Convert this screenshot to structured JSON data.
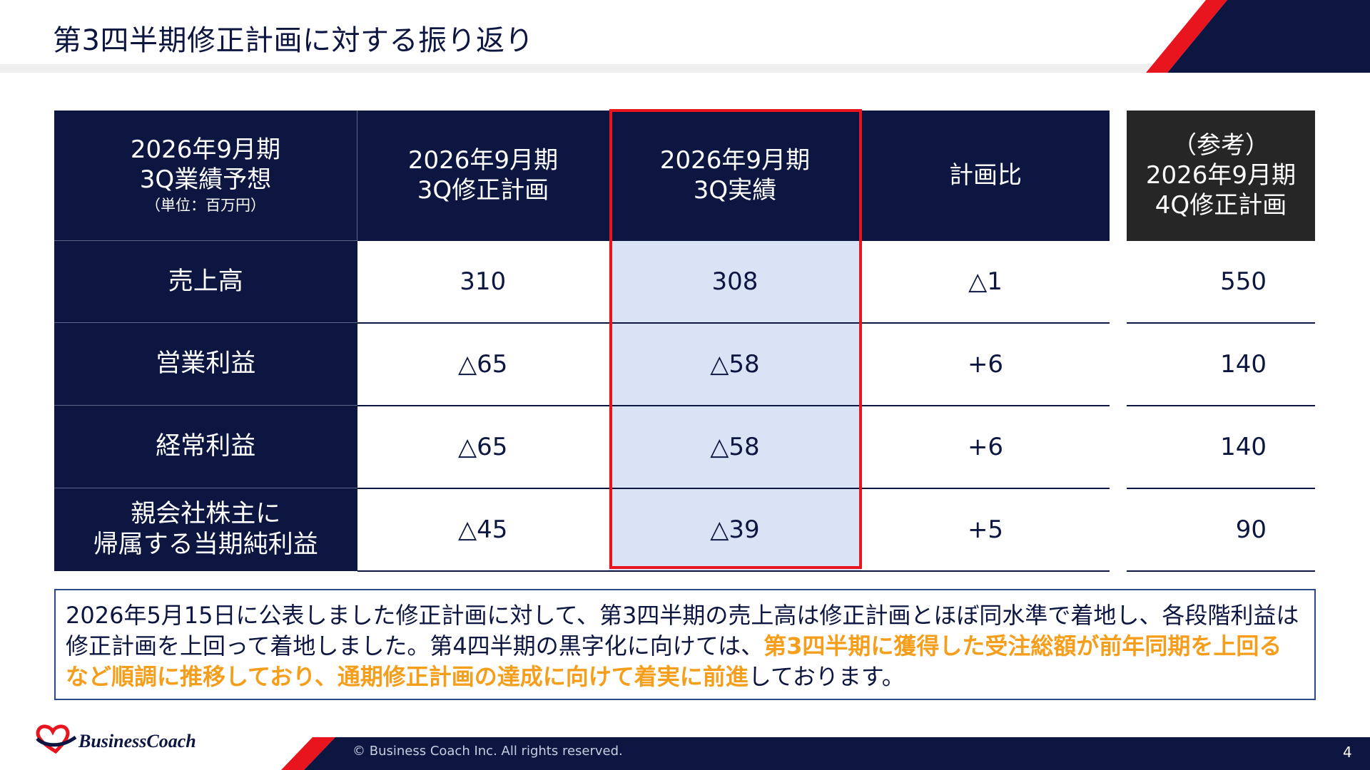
{
  "header": {
    "title": "第3四半期修正計画に対する振り返り"
  },
  "table": {
    "headers": {
      "col0": {
        "line1": "2026年9月期",
        "line2": "3Q業績予想",
        "unit": "（単位：百万円）"
      },
      "col1": {
        "line1": "2026年9月期",
        "line2": "3Q修正計画"
      },
      "col2": {
        "line1": "2026年9月期",
        "line2": "3Q実績"
      },
      "col3": {
        "line1": "計画比"
      },
      "col4": {
        "line1": "（参考）",
        "line2": "2026年9月期",
        "line3": "4Q修正計画"
      }
    },
    "rows": [
      {
        "label_line1": "売上高",
        "label_line2": "",
        "plan": "310",
        "actual": "308",
        "ratio": "△1",
        "ref": "550"
      },
      {
        "label_line1": "営業利益",
        "label_line2": "",
        "plan": "△65",
        "actual": "△58",
        "ratio": "+6",
        "ref": "140"
      },
      {
        "label_line1": "経常利益",
        "label_line2": "",
        "plan": "△65",
        "actual": "△58",
        "ratio": "+6",
        "ref": "140"
      },
      {
        "label_line1": "親会社株主に",
        "label_line2": "帰属する当期純利益",
        "plan": "△45",
        "actual": "△39",
        "ratio": "+5",
        "ref": "90"
      }
    ]
  },
  "summary": {
    "part1": "2026年5月15日に公表しました修正計画に対して、第3四半期の売上高は修正計画とほぼ同水準で着地し、各段階利益は修正計画を上回って着地しました。第4四半期の黒字化に向けては、",
    "highlight": "第3四半期に獲得した受注総額が前年同期を上回るなど順調に推移しており、通期修正計画の達成に向けて着実に前進",
    "part2": "しております。"
  },
  "footer": {
    "logo_text": "BusinessCoach",
    "copyright": "© Business Coach Inc. All rights reserved.",
    "page_number": "4"
  },
  "colors": {
    "navy": "#0c1640",
    "red": "#e8141e",
    "highlight_orange": "#f59e1b",
    "actual_bg": "#dae3f6",
    "ref_header": "#262626"
  }
}
